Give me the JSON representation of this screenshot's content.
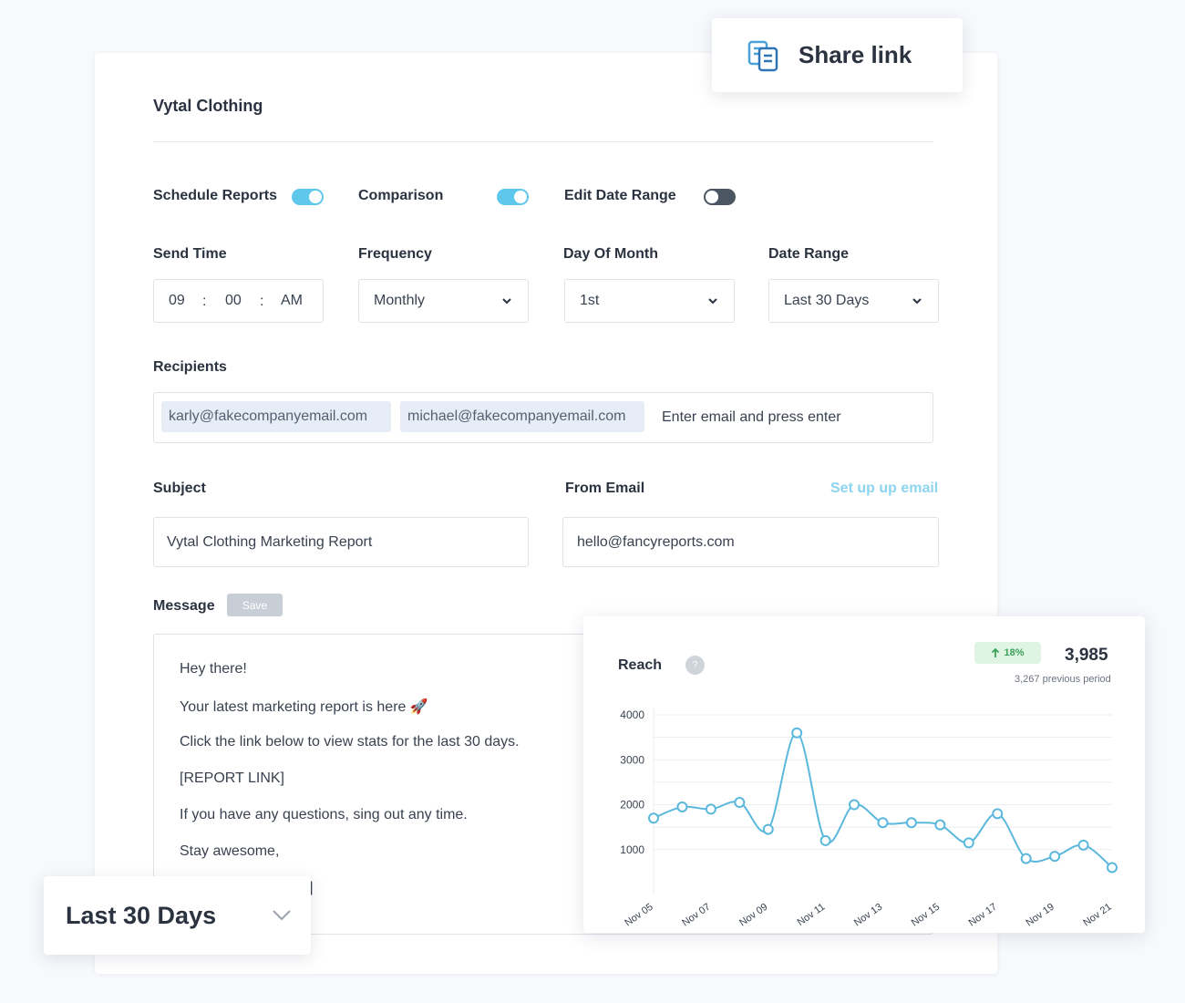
{
  "client": {
    "name": "Vytal Clothing"
  },
  "toggles": [
    {
      "label": "Schedule Reports",
      "on": true
    },
    {
      "label": "Comparison",
      "on": true
    },
    {
      "label": "Edit Date Range",
      "on": false
    }
  ],
  "send_time": {
    "label": "Send Time",
    "hour": "09",
    "sep": ":",
    "minute": "00",
    "ampm": "AM"
  },
  "frequency": {
    "label": "Frequency",
    "value": "Monthly"
  },
  "day_of_month": {
    "label": "Day Of Month",
    "value": "1st"
  },
  "date_range": {
    "label": "Date Range",
    "value": "Last 30 Days"
  },
  "recipients": {
    "label": "Recipients",
    "chips": [
      "karly@fakecompanyemail.com",
      "michael@fakecompanyemail.com"
    ],
    "placeholder": "Enter email and press enter"
  },
  "subject": {
    "label": "Subject",
    "value": "Vytal Clothing Marketing Report"
  },
  "from_email": {
    "label": "From Email",
    "value": "hello@fancyreports.com",
    "setup_link": "Set up up email"
  },
  "message": {
    "label": "Message",
    "save_label": "Save",
    "lines": [
      "Hey there!",
      "Your latest marketing report is here 🚀",
      "Click the link below to view stats for the last 30 days.",
      "[REPORT LINK]",
      "If you have any questions, sing out any time.",
      "Stay awesome,",
      "]"
    ]
  },
  "share": {
    "label": "Share link"
  },
  "range_overlay": {
    "label": "Last 30 Days"
  },
  "reach": {
    "title": "Reach",
    "help": "?",
    "change": "18%",
    "value": "3,985",
    "previous": "3,267 previous period"
  },
  "chart_data": {
    "type": "line",
    "title": "Reach",
    "color": "#5bb8dd",
    "ylim": [
      0,
      4000
    ],
    "yticks": [
      1000,
      2000,
      3000,
      4000
    ],
    "xticks": [
      "Nov 05",
      "Nov 07",
      "Nov 09",
      "Nov 11",
      "Nov 13",
      "Nov 15",
      "Nov 17",
      "Nov 19",
      "Nov 21"
    ],
    "x": [
      "Nov 05",
      "Nov 06",
      "Nov 07",
      "Nov 08",
      "Nov 09",
      "Nov 10",
      "Nov 11",
      "Nov 12",
      "Nov 13",
      "Nov 14",
      "Nov 15",
      "Nov 16",
      "Nov 17",
      "Nov 18",
      "Nov 19",
      "Nov 20",
      "Nov 21"
    ],
    "values": [
      1700,
      1950,
      1900,
      2050,
      1450,
      3600,
      1200,
      2000,
      1600,
      1600,
      1550,
      1150,
      1800,
      800,
      850,
      1100,
      600
    ],
    "grid": true
  }
}
